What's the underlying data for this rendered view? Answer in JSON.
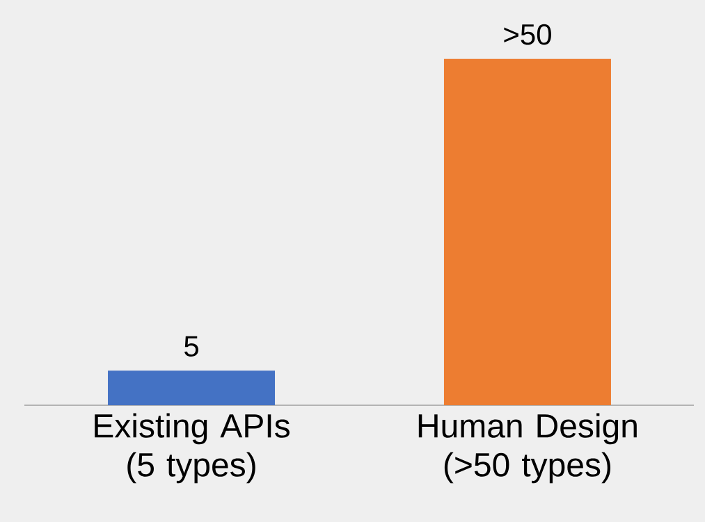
{
  "chart_data": {
    "type": "bar",
    "categories": [
      "Existing APIs (5 types)",
      "Human Design (>50 types)"
    ],
    "values": [
      5,
      50
    ],
    "colors": [
      "#4472c4",
      "#ed7d31"
    ],
    "value_labels": [
      "5",
      ">50"
    ]
  }
}
